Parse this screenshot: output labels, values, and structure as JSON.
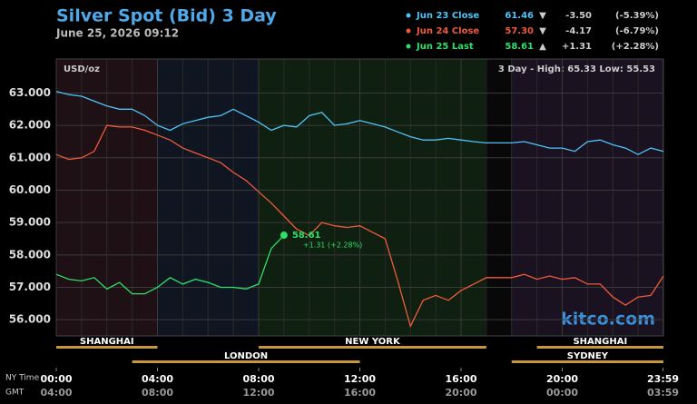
{
  "chart_data": {
    "type": "line",
    "title": "Silver Spot (Bid) 3 Day",
    "subtitle": "June 25, 2026 09:12",
    "y_label": "USD/oz",
    "range_label": "3 Day - High: 65.33  Low: 55.53",
    "brand": "kitco.com",
    "x_row_labels": [
      "NY Time",
      "GMT"
    ],
    "x": [
      0,
      0.5,
      1,
      1.5,
      2,
      2.5,
      3,
      3.5,
      4,
      4.5,
      5,
      5.5,
      6,
      6.5,
      7,
      7.5,
      8,
      8.5,
      9,
      9.5,
      10,
      10.5,
      11,
      11.5,
      12,
      12.5,
      13,
      13.5,
      14,
      14.5,
      15,
      15.5,
      16,
      16.5,
      17,
      17.5,
      18,
      18.5,
      19,
      19.5,
      20,
      20.5,
      21,
      21.5,
      22,
      22.5,
      23,
      23.5,
      24
    ],
    "series": [
      {
        "name": "Jun 23 Close",
        "color": "#4fc3f7",
        "last": "61.46",
        "direction": "▼",
        "change": "-3.50",
        "change_pct": "(-5.39%)",
        "values": [
          63.05,
          62.95,
          62.9,
          62.75,
          62.6,
          62.5,
          62.5,
          62.3,
          62.0,
          61.85,
          62.05,
          62.15,
          62.25,
          62.3,
          62.5,
          62.3,
          62.1,
          61.85,
          62.0,
          61.95,
          62.3,
          62.4,
          62.0,
          62.05,
          62.15,
          62.05,
          61.95,
          61.8,
          61.65,
          61.55,
          61.55,
          61.6,
          61.55,
          61.5,
          61.46,
          61.46,
          61.46,
          61.5,
          61.4,
          61.3,
          61.3,
          61.2,
          61.5,
          61.55,
          61.4,
          61.3,
          61.1,
          61.3,
          61.2
        ]
      },
      {
        "name": "Jun 24 Close",
        "color": "#ef5a3c",
        "last": "57.30",
        "direction": "▼",
        "change": "-4.17",
        "change_pct": "(-6.79%)",
        "values": [
          61.1,
          60.95,
          61.0,
          61.2,
          62.0,
          61.95,
          61.95,
          61.85,
          61.7,
          61.55,
          61.3,
          61.15,
          61.0,
          60.85,
          60.55,
          60.3,
          59.95,
          59.6,
          59.2,
          58.8,
          58.6,
          59.0,
          58.9,
          58.85,
          58.9,
          58.7,
          58.5,
          57.2,
          55.8,
          56.6,
          56.75,
          56.6,
          56.9,
          57.1,
          57.3,
          57.3,
          57.3,
          57.4,
          57.25,
          57.35,
          57.25,
          57.3,
          57.1,
          57.1,
          56.7,
          56.45,
          56.7,
          56.75,
          57.35
        ]
      },
      {
        "name": "Jun 25 Last",
        "color": "#2ee06a",
        "last": "58.61",
        "direction": "▲",
        "change": "+1.31",
        "change_pct": "(+2.28%)",
        "last_note": "+1.31 (+2.28%)",
        "values": [
          57.4,
          57.25,
          57.2,
          57.3,
          56.95,
          57.15,
          56.8,
          56.8,
          57.0,
          57.3,
          57.1,
          57.25,
          57.15,
          57.0,
          57.0,
          56.95,
          57.1,
          58.2,
          58.61,
          null,
          null,
          null,
          null,
          null,
          null,
          null,
          null,
          null,
          null,
          null,
          null,
          null,
          null,
          null,
          null,
          null,
          null,
          null,
          null,
          null,
          null,
          null,
          null,
          null,
          null,
          null,
          null,
          null,
          null
        ]
      }
    ],
    "ylim": [
      55.5,
      64.05
    ],
    "yticks": [
      {
        "value": 56,
        "label": "56.000"
      },
      {
        "value": 57,
        "label": "57.000"
      },
      {
        "value": 58,
        "label": "58.000"
      },
      {
        "value": 59,
        "label": "59.000"
      },
      {
        "value": 60,
        "label": "60.000"
      },
      {
        "value": 61,
        "label": "61.000"
      },
      {
        "value": 62,
        "label": "62.000"
      },
      {
        "value": 63,
        "label": "63.000"
      }
    ],
    "xlim": [
      0,
      24
    ],
    "xticks": [
      {
        "value": 0,
        "label": "00:00"
      },
      {
        "value": 4,
        "label": "04:00"
      },
      {
        "value": 8,
        "label": "08:00"
      },
      {
        "value": 12,
        "label": "12:00"
      },
      {
        "value": 16,
        "label": "16:00"
      },
      {
        "value": 20,
        "label": "20:00"
      },
      {
        "value": 23.983,
        "label": "23:59"
      }
    ],
    "xtick_labels_gmt": [
      "04:00",
      "08:00",
      "12:00",
      "16:00",
      "20:00",
      "00:00",
      "03:59"
    ],
    "sessions": [
      {
        "name": "SHANGHAI",
        "start": 0,
        "end": 4,
        "row": 0
      },
      {
        "name": "NEW YORK",
        "start": 8,
        "end": 17,
        "row": 0
      },
      {
        "name": "SHANGHAI",
        "start": 19,
        "end": 24,
        "row": 0
      },
      {
        "name": "LONDON",
        "start": 3,
        "end": 12,
        "row": 1
      },
      {
        "name": "SYDNEY",
        "start": 18,
        "end": 24,
        "row": 1
      }
    ],
    "grid": true
  }
}
